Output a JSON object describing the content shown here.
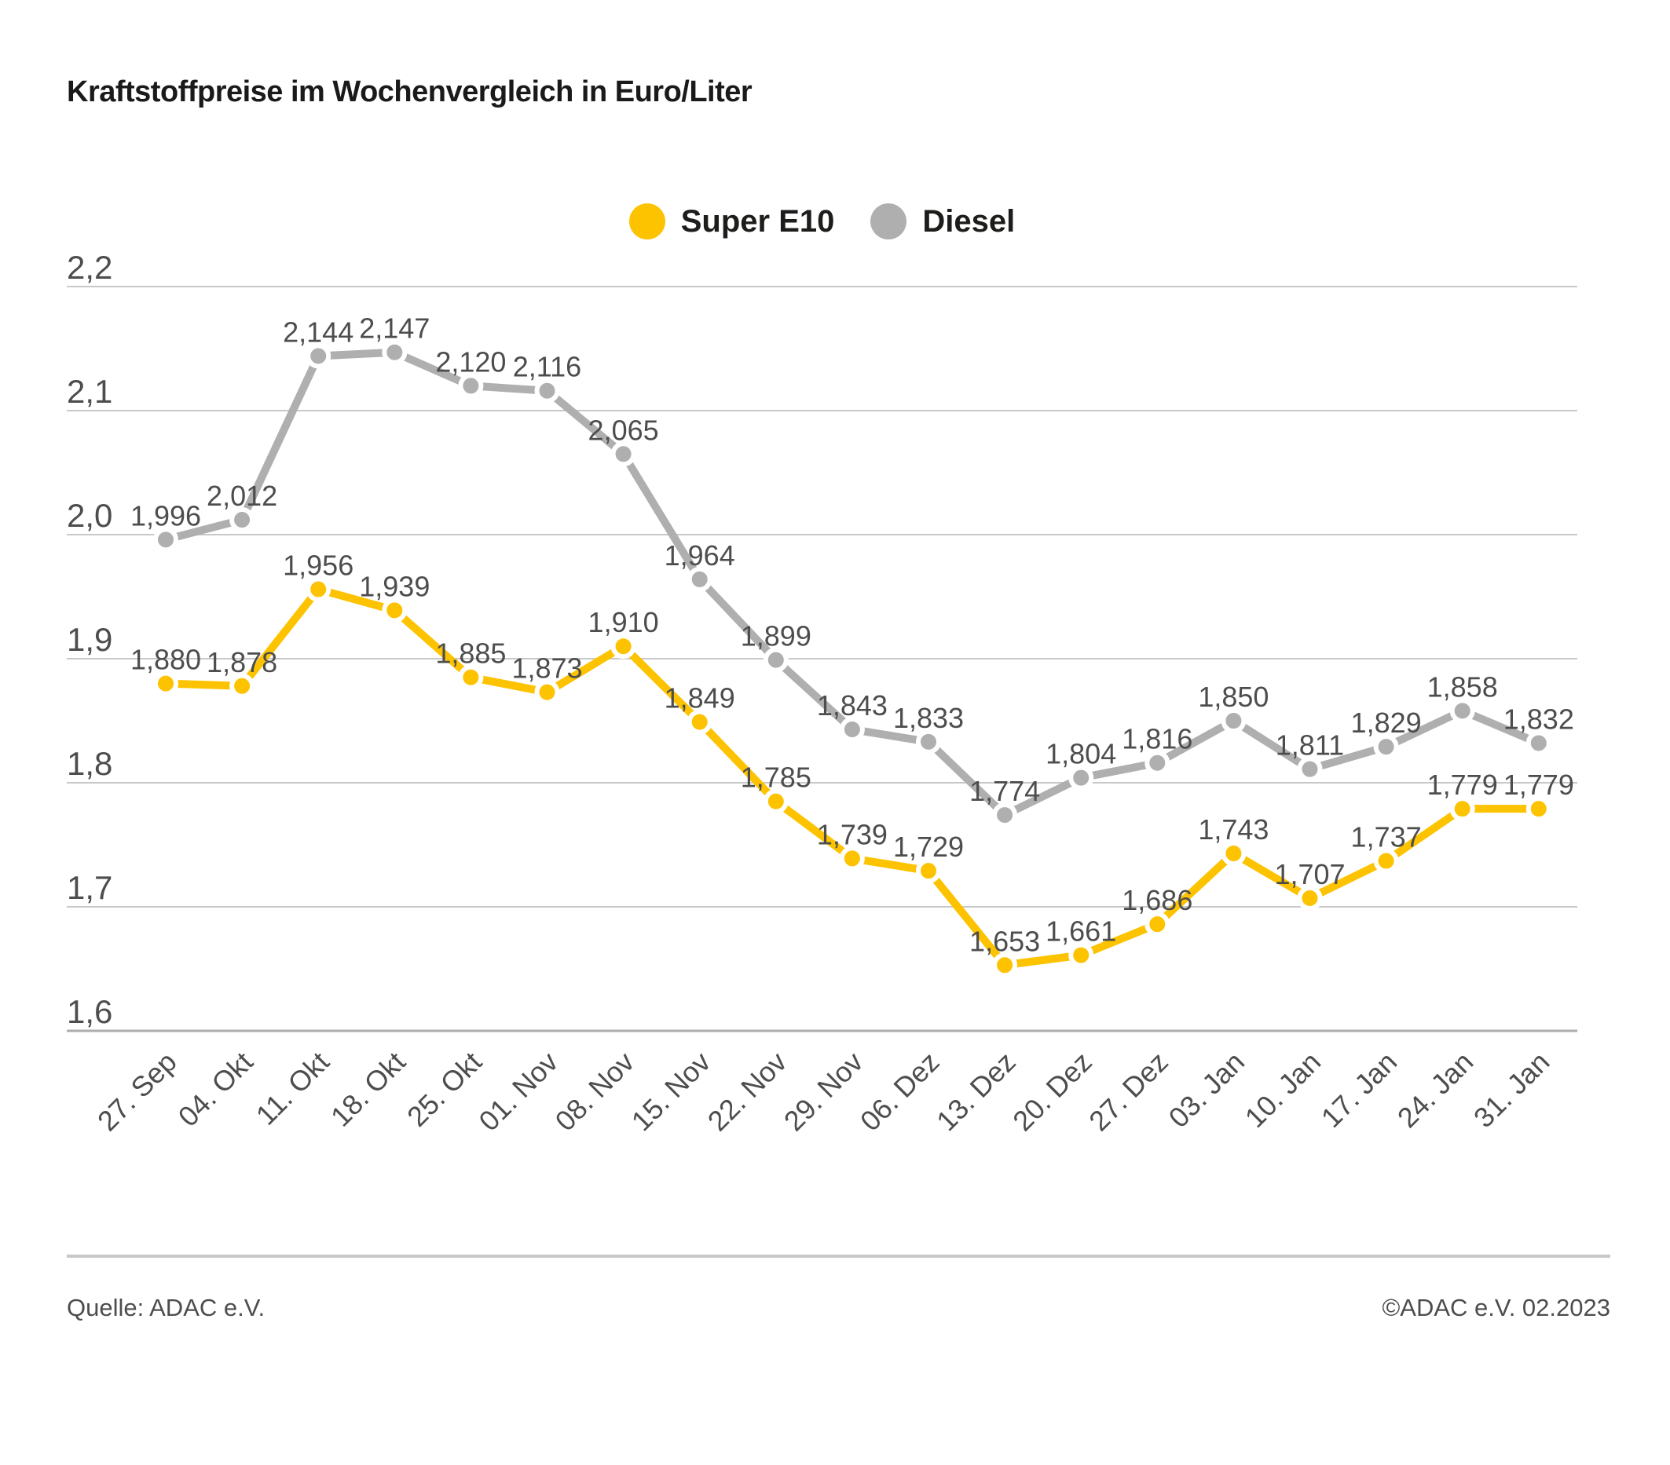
{
  "title": "Kraftstoffpreise im Wochenvergleich in Euro/Liter",
  "chart_data": {
    "type": "line",
    "title": "Kraftstoffpreise im Wochenvergleich in Euro/Liter",
    "unit": "Euro/Liter",
    "categories": [
      "27. Sep",
      "04. Okt",
      "11. Okt",
      "18. Okt",
      "25. Okt",
      "01. Nov",
      "08. Nov",
      "15. Nov",
      "22. Nov",
      "29. Nov",
      "06. Dez",
      "13. Dez",
      "20. Dez",
      "27. Dez",
      "03. Jan",
      "10. Jan",
      "17. Jan",
      "24. Jan",
      "31. Jan"
    ],
    "series": [
      {
        "name": "Super E10",
        "color": "#FDC300",
        "values": [
          1.88,
          1.878,
          1.956,
          1.939,
          1.885,
          1.873,
          1.91,
          1.849,
          1.785,
          1.739,
          1.729,
          1.653,
          1.661,
          1.686,
          1.743,
          1.707,
          1.737,
          1.779,
          1.779
        ]
      },
      {
        "name": "Diesel",
        "color": "#AFAFAF",
        "values": [
          1.996,
          2.012,
          2.144,
          2.147,
          2.12,
          2.116,
          2.065,
          1.964,
          1.899,
          1.843,
          1.833,
          1.774,
          1.804,
          1.816,
          1.85,
          1.811,
          1.829,
          1.858,
          1.832
        ]
      }
    ],
    "ylim": [
      1.6,
      2.2
    ],
    "yticks": [
      2.2,
      2.1,
      2.0,
      1.9,
      1.8,
      1.7,
      1.6
    ],
    "ytick_labels": [
      "2,2",
      "2,1",
      "2,0",
      "1,9",
      "1,8",
      "1,7",
      "1,6"
    ],
    "grid": true,
    "legend_position": "top-center",
    "value_labels": true,
    "decimal_separator": ","
  },
  "footer": {
    "source": "Quelle: ADAC e.V.",
    "copyright": "©ADAC e.V. 02.2023"
  },
  "colors": {
    "super_e10": "#FDC300",
    "diesel": "#AFAFAF",
    "gridline": "#C8C8C8",
    "axis_line": "#ADADAD",
    "value_label_text": "#4D4D4D",
    "tick_label_text": "#4D4D4D",
    "title_text": "#1A1A1A",
    "footer_text": "#4D4D4D",
    "footer_divider": "#C8C8C8"
  }
}
